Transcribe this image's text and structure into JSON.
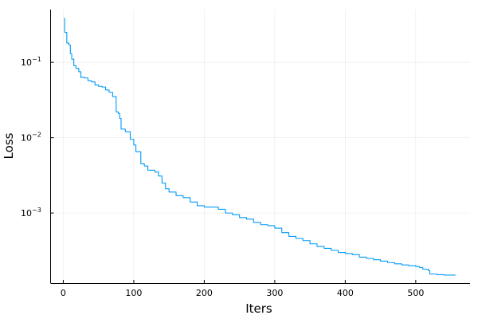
{
  "chart_data": {
    "type": "line",
    "xlabel": "Iters",
    "ylabel": "Loss",
    "xlim": [
      -18,
      577
    ],
    "ylim_log10": [
      -3.93,
      -0.3
    ],
    "yscale": "log10",
    "grid": true,
    "legend": "none",
    "x_ticks": [
      0,
      100,
      200,
      300,
      400,
      500
    ],
    "y_ticks": [
      {
        "exponent": -3,
        "base": "10",
        "sup": "−3"
      },
      {
        "exponent": -2,
        "base": "10",
        "sup": "−2"
      },
      {
        "exponent": -1,
        "base": "10",
        "sup": "−1"
      }
    ],
    "series": [
      {
        "color": "#009AFA",
        "points": [
          [
            1,
            0.38
          ],
          [
            2,
            0.25
          ],
          [
            5,
            0.18
          ],
          [
            8,
            0.17
          ],
          [
            10,
            0.13
          ],
          [
            12,
            0.11
          ],
          [
            15,
            0.09
          ],
          [
            18,
            0.083
          ],
          [
            22,
            0.075
          ],
          [
            25,
            0.063
          ],
          [
            30,
            0.062
          ],
          [
            35,
            0.057
          ],
          [
            40,
            0.055
          ],
          [
            45,
            0.05
          ],
          [
            50,
            0.048
          ],
          [
            55,
            0.047
          ],
          [
            60,
            0.043
          ],
          [
            65,
            0.04
          ],
          [
            70,
            0.035
          ],
          [
            75,
            0.022
          ],
          [
            78,
            0.021
          ],
          [
            80,
            0.018
          ],
          [
            82,
            0.013
          ],
          [
            88,
            0.012
          ],
          [
            95,
            0.0095
          ],
          [
            100,
            0.008
          ],
          [
            103,
            0.0065
          ],
          [
            110,
            0.0045
          ],
          [
            115,
            0.0042
          ],
          [
            120,
            0.0037
          ],
          [
            130,
            0.0035
          ],
          [
            135,
            0.0031
          ],
          [
            140,
            0.0025
          ],
          [
            145,
            0.0021
          ],
          [
            150,
            0.0019
          ],
          [
            160,
            0.0017
          ],
          [
            170,
            0.0016
          ],
          [
            180,
            0.0014
          ],
          [
            190,
            0.00125
          ],
          [
            200,
            0.0012
          ],
          [
            210,
            0.0012
          ],
          [
            220,
            0.00112
          ],
          [
            230,
            0.001
          ],
          [
            240,
            0.00095
          ],
          [
            250,
            0.00087
          ],
          [
            260,
            0.00083
          ],
          [
            270,
            0.00075
          ],
          [
            280,
            0.0007
          ],
          [
            290,
            0.00068
          ],
          [
            300,
            0.00063
          ],
          [
            310,
            0.00055
          ],
          [
            320,
            0.00049
          ],
          [
            330,
            0.00046
          ],
          [
            340,
            0.00043
          ],
          [
            350,
            0.00039
          ],
          [
            360,
            0.00036
          ],
          [
            370,
            0.00034
          ],
          [
            380,
            0.00032
          ],
          [
            390,
            0.0003
          ],
          [
            400,
            0.00029
          ],
          [
            410,
            0.00028
          ],
          [
            420,
            0.00026
          ],
          [
            430,
            0.00025
          ],
          [
            440,
            0.00024
          ],
          [
            450,
            0.00023
          ],
          [
            460,
            0.00022
          ],
          [
            470,
            0.000212
          ],
          [
            480,
            0.000205
          ],
          [
            490,
            0.0002
          ],
          [
            500,
            0.000195
          ],
          [
            505,
            0.00019
          ],
          [
            510,
            0.00018
          ],
          [
            518,
            0.000172
          ],
          [
            520,
            0.000155
          ],
          [
            530,
            0.000152
          ],
          [
            540,
            0.00015
          ],
          [
            556,
            0.000149
          ]
        ]
      }
    ]
  }
}
